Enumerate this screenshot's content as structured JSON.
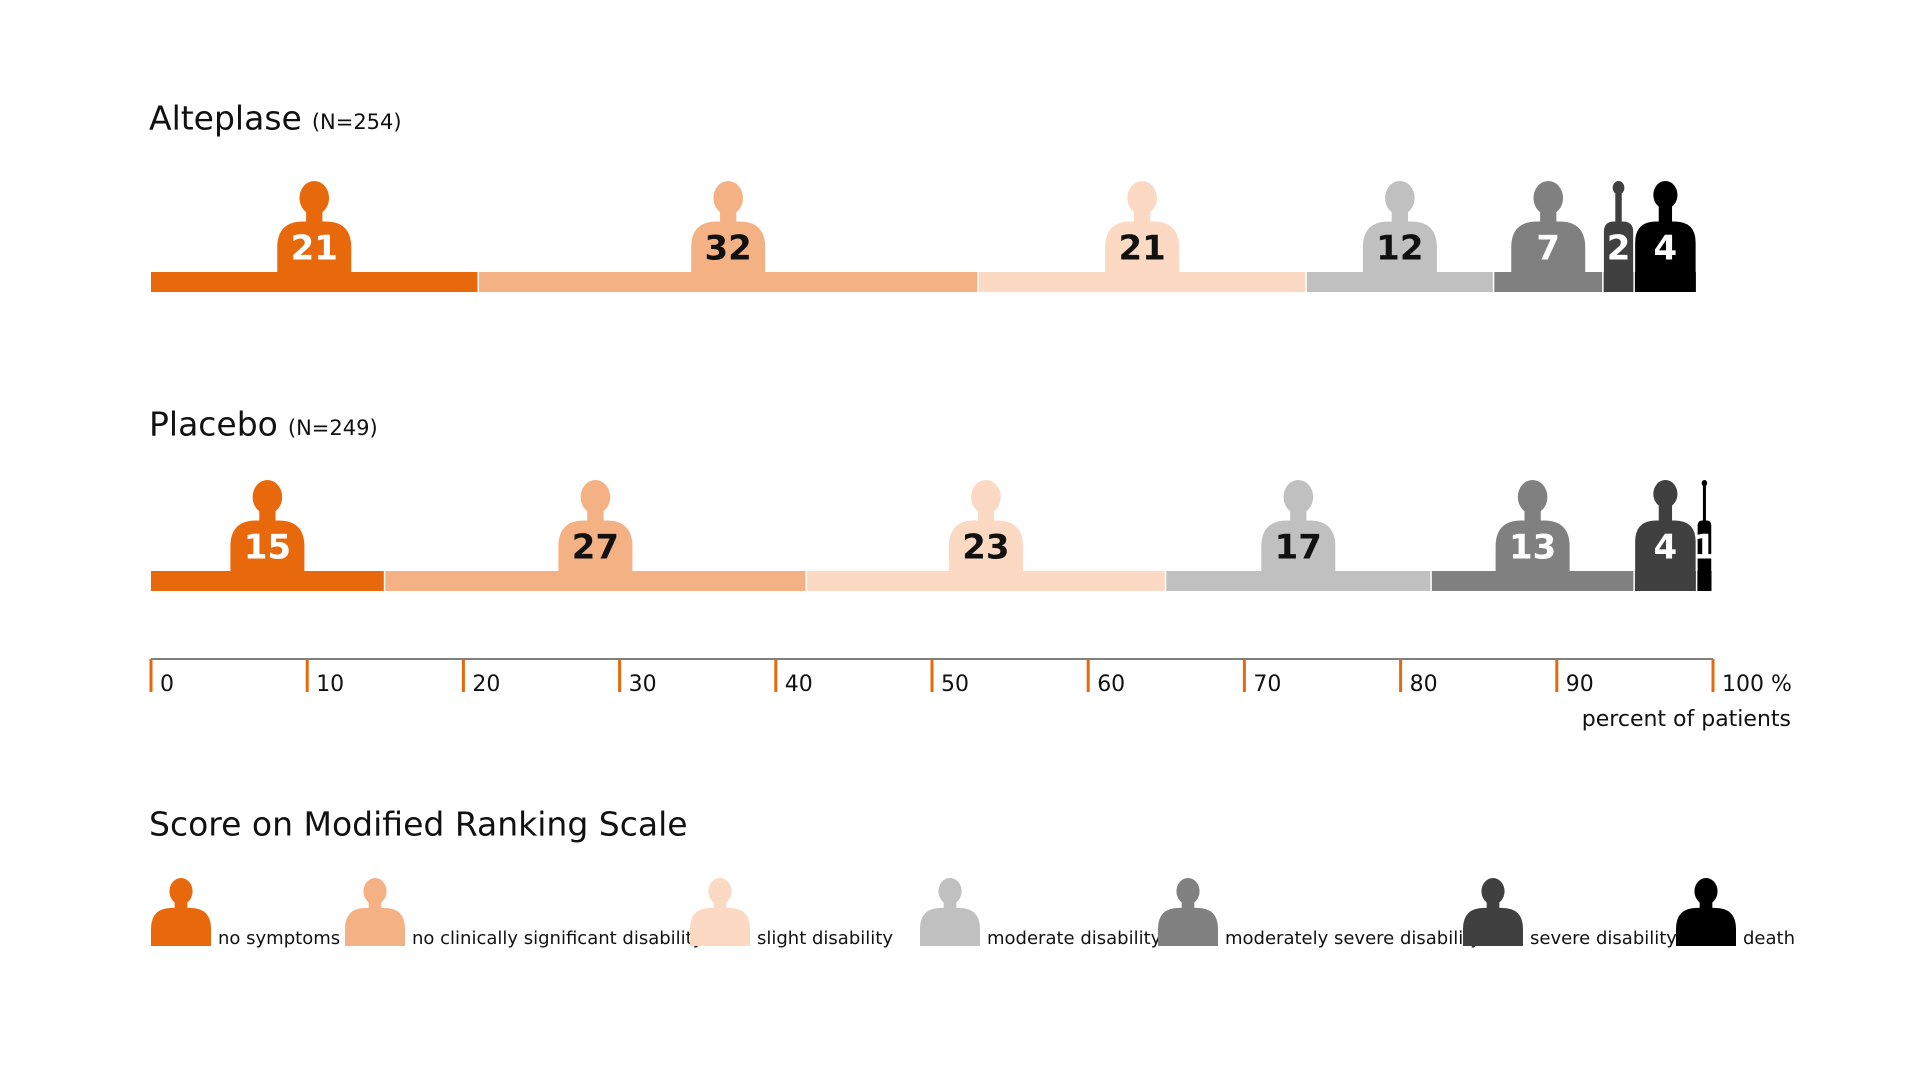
{
  "chart_data": {
    "type": "stacked-bar",
    "categories": [
      "Alteplase",
      "Placebo"
    ],
    "category_notes": [
      "(N=254)",
      "(N=249)"
    ],
    "series": [
      {
        "name": "no symptoms",
        "color": "#e8690c",
        "values": [
          21,
          15
        ]
      },
      {
        "name": "no clinically significant disability",
        "color": "#f4b183",
        "values": [
          32,
          27
        ]
      },
      {
        "name": "slight disability",
        "color": "#fbd9c2",
        "values": [
          21,
          23
        ]
      },
      {
        "name": "moderate disability",
        "color": "#c0c0c0",
        "values": [
          12,
          17
        ]
      },
      {
        "name": "moderately severe disability",
        "color": "#808080",
        "values": [
          7,
          13
        ]
      },
      {
        "name": "severe disability",
        "color": "#404040",
        "values": [
          2,
          4
        ]
      },
      {
        "name": "death",
        "color": "#000000",
        "values": [
          4,
          1
        ]
      }
    ],
    "xlim": [
      0,
      100
    ],
    "xticks": [
      0,
      10,
      20,
      30,
      40,
      50,
      60,
      70,
      80,
      90,
      {
        "value": 100,
        "label": "100 %"
      }
    ],
    "axis_color": "#e8690c",
    "xlabel": "percent of patients",
    "legend_title": "Score on Modified Ranking Scale"
  }
}
